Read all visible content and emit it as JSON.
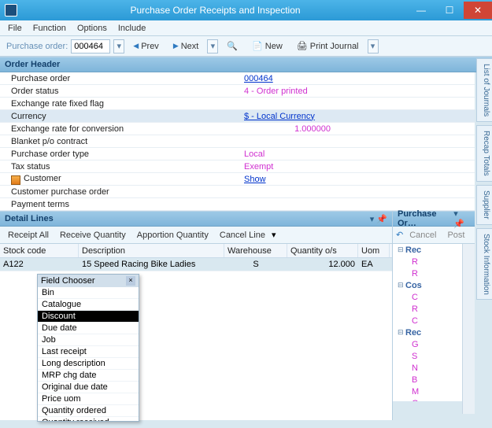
{
  "window": {
    "title": "Purchase Order Receipts and Inspection"
  },
  "menubar": [
    "File",
    "Function",
    "Options",
    "Include"
  ],
  "toolbar": {
    "po_label": "Purchase order:",
    "po_value": "000464",
    "prev": "Prev",
    "next": "Next",
    "new": "New",
    "print": "Print Journal"
  },
  "sections": {
    "order_header": "Order Header",
    "detail_lines": "Detail Lines",
    "purchase_or": "Purchase Or…"
  },
  "header_rows": [
    {
      "k": "Purchase order",
      "v": "000464",
      "cls": "link"
    },
    {
      "k": "Order status",
      "v": "4 - Order printed",
      "cls": ""
    },
    {
      "k": "Exchange rate fixed flag",
      "v": "",
      "cls": ""
    },
    {
      "k": "Currency",
      "v": "$  - Local Currency",
      "cls": "link",
      "sel": true
    },
    {
      "k": "Exchange rate for conversion",
      "v": "1.000000",
      "cls": "num"
    },
    {
      "k": "Blanket p/o contract",
      "v": "",
      "cls": ""
    },
    {
      "k": "Purchase order type",
      "v": "Local",
      "cls": ""
    },
    {
      "k": "Tax status",
      "v": "Exempt",
      "cls": ""
    },
    {
      "k": "Customer",
      "v": "Show",
      "cls": "link",
      "icon": true
    },
    {
      "k": "Customer purchase order",
      "v": "",
      "cls": ""
    },
    {
      "k": "Payment terms",
      "v": "",
      "cls": ""
    }
  ],
  "detail_toolbar": [
    "Receipt All",
    "Receive Quantity",
    "Apportion Quantity",
    "Cancel Line"
  ],
  "detail_cols": {
    "stock": "Stock code",
    "desc": "Description",
    "wh": "Warehouse",
    "qty": "Quantity o/s",
    "uom": "Uom"
  },
  "detail_row": {
    "stock": "A122",
    "desc": "15 Speed Racing Bike Ladies",
    "wh": "S",
    "qty": "12.000",
    "uom": "EA"
  },
  "field_chooser": {
    "title": "Field Chooser",
    "items": [
      "Bin",
      "Catalogue",
      "Discount",
      "Due date",
      "Job",
      "Last receipt",
      "Long description",
      "MRP chg date",
      "Original due date",
      "Price uom",
      "Quantity ordered",
      "Quantity received"
    ],
    "selected": "Discount"
  },
  "right_toolbar": {
    "cancel": "Cancel",
    "post": "Post"
  },
  "tree": [
    {
      "type": "grp",
      "label": "Rec"
    },
    {
      "type": "leaf",
      "label": "R"
    },
    {
      "type": "leaf",
      "label": "R"
    },
    {
      "type": "grp",
      "label": "Cos"
    },
    {
      "type": "leaf",
      "label": "C"
    },
    {
      "type": "leaf",
      "label": "R"
    },
    {
      "type": "leaf",
      "label": "C"
    },
    {
      "type": "grp",
      "label": "Rec"
    },
    {
      "type": "leaf",
      "label": "G"
    },
    {
      "type": "leaf",
      "label": "S"
    },
    {
      "type": "leaf",
      "label": "N"
    },
    {
      "type": "leaf",
      "label": "B"
    },
    {
      "type": "leaf",
      "label": "M"
    },
    {
      "type": "leaf",
      "label": "G"
    }
  ],
  "sidetabs": [
    "List of Journals",
    "Recap Totals",
    "Supplier",
    "Stock Information"
  ]
}
